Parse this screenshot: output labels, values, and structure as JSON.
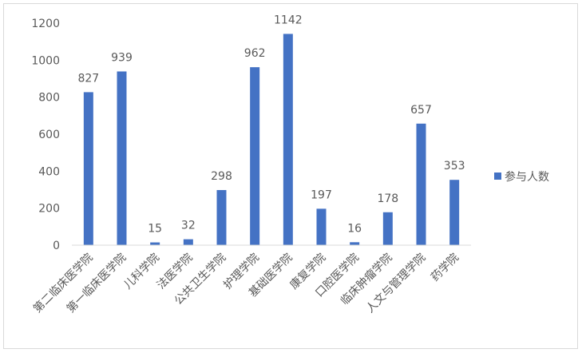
{
  "chart_data": {
    "type": "bar",
    "title": "",
    "xlabel": "",
    "ylabel": "",
    "categories": [
      "第二临床医学院",
      "第一临床医学院",
      "儿科学院",
      "法医学院",
      "公共卫生学院",
      "护理学院",
      "基础医学院",
      "康复学院",
      "口腔医学院",
      "临床肿瘤学院",
      "人文与管理学院",
      "药学院"
    ],
    "series": [
      {
        "name": "参与人数",
        "values": [
          827,
          939,
          15,
          32,
          298,
          962,
          1142,
          197,
          16,
          178,
          657,
          353
        ],
        "color": "#4472c4"
      }
    ],
    "ylim": [
      0,
      1200
    ],
    "yticks": [
      0,
      200,
      400,
      600,
      800,
      1000,
      1200
    ],
    "grid": false,
    "data_labels": true,
    "legend_position": "right"
  }
}
